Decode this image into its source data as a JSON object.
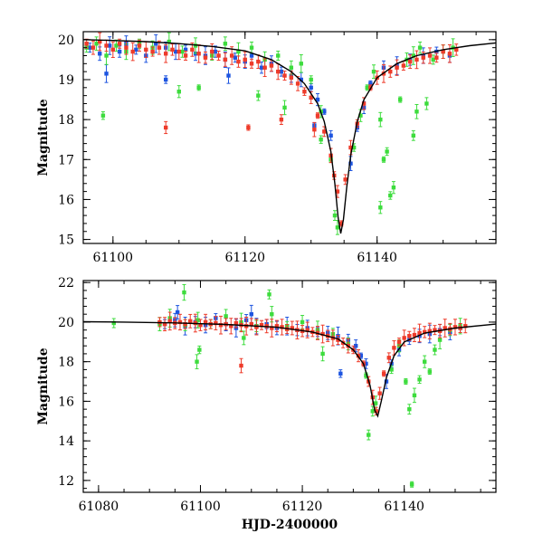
{
  "chart_data": [
    {
      "type": "scatter",
      "title": "",
      "xlabel": "",
      "ylabel": "Magnitude",
      "xlim": [
        61095.5,
        61158
      ],
      "ylim": [
        20.2,
        14.9
      ],
      "y_inverted": true,
      "x_ticks": [
        61100,
        61120,
        61140
      ],
      "x_tick_labels": [
        "61100",
        "61120",
        "61140"
      ],
      "y_ticks": [
        15,
        16,
        17,
        18,
        19,
        20
      ],
      "y_tick_labels": [
        "15",
        "16",
        "17",
        "18",
        "19",
        "20"
      ],
      "model_curve": {
        "name": "microlensing model",
        "color": "#000000",
        "x": [
          61095.5,
          61100,
          61105,
          61110,
          61115,
          61120,
          61124,
          61127,
          61129,
          61131,
          61132,
          61133,
          61133.6,
          61134.1,
          61134.5,
          61134.9,
          61135.4,
          61136,
          61137,
          61138,
          61140,
          61143,
          61146,
          61150,
          61154,
          61158
        ],
        "y": [
          20.0,
          19.98,
          19.95,
          19.9,
          19.83,
          19.72,
          19.5,
          19.2,
          18.9,
          18.4,
          17.95,
          17.2,
          16.4,
          15.55,
          15.15,
          15.5,
          16.3,
          17.1,
          17.95,
          18.5,
          19.05,
          19.4,
          19.6,
          19.75,
          19.85,
          19.92
        ]
      },
      "series": [
        {
          "name": "blue telescope",
          "color": "#1e55e0",
          "x": [
            61096.5,
            61098,
            61099.5,
            61101,
            61102,
            61103.5,
            61105,
            61106.5,
            61108,
            61109.5,
            61111,
            61112.5,
            61114,
            61115.5,
            61117,
            61118.5,
            61120,
            61121,
            61122.5,
            61124,
            61125.5,
            61127,
            61128.5,
            61130,
            61131,
            61132,
            61133,
            61136,
            61137,
            61138,
            61139,
            61141,
            61143,
            61145,
            61147,
            61149,
            61151,
            61099,
            61108,
            61117.5,
            61130.5
          ],
          "y": [
            19.8,
            19.65,
            19.85,
            19.7,
            19.9,
            19.75,
            19.6,
            19.9,
            19.8,
            19.7,
            19.75,
            19.65,
            19.6,
            19.7,
            19.5,
            19.55,
            19.45,
            19.6,
            19.3,
            19.4,
            19.2,
            19.1,
            19.0,
            18.8,
            18.5,
            18.2,
            17.6,
            16.9,
            17.8,
            18.3,
            18.9,
            19.3,
            19.35,
            19.5,
            19.6,
            19.7,
            19.6,
            19.15,
            19.0,
            19.1,
            17.85
          ]
        },
        {
          "name": "green telescope",
          "color": "#3ddc3d",
          "x": [
            61096,
            61097.5,
            61099,
            61100.5,
            61102,
            61104,
            61106,
            61108.5,
            61110.5,
            61112.5,
            61115,
            61117,
            61119,
            61121,
            61123,
            61125,
            61127,
            61128.5,
            61130,
            61131.5,
            61133,
            61133.6,
            61134,
            61136.5,
            61137.5,
            61138.5,
            61139.5,
            61140.5,
            61141.5,
            61142.5,
            61143.5,
            61144.5,
            61145.5,
            61146.5,
            61147.5,
            61148.5,
            61150,
            61151.5,
            61098.5,
            61110,
            61113,
            61122,
            61126,
            61131.5,
            61140.5,
            61141,
            61145.5,
            61146,
            61142
          ],
          "y": [
            19.8,
            19.9,
            19.6,
            19.85,
            19.7,
            19.9,
            19.8,
            19.95,
            19.7,
            19.85,
            19.6,
            19.9,
            19.7,
            19.8,
            19.5,
            19.6,
            19.3,
            19.4,
            19.0,
            18.2,
            17.0,
            15.6,
            15.3,
            17.3,
            18.1,
            18.8,
            19.2,
            18.0,
            17.2,
            16.3,
            18.5,
            19.5,
            19.6,
            19.8,
            18.4,
            19.5,
            19.7,
            19.8,
            18.1,
            18.7,
            18.8,
            18.6,
            18.3,
            17.5,
            15.8,
            17.0,
            17.6,
            18.2,
            16.1
          ]
        },
        {
          "name": "red telescope",
          "color": "#ee3b2a",
          "x": [
            61096,
            61097,
            61098,
            61099,
            61100,
            61101,
            61102,
            61103,
            61104,
            61105,
            61106,
            61107,
            61108,
            61109,
            61110,
            61111,
            61112,
            61113,
            61114,
            61115,
            61116,
            61117,
            61118,
            61119,
            61120,
            61121,
            61122,
            61123,
            61124,
            61125,
            61126,
            61127,
            61128,
            61129,
            61130,
            61131,
            61132,
            61133,
            61133.5,
            61134,
            61134.6,
            61135.2,
            61136,
            61137,
            61138,
            61139,
            61140,
            61141,
            61142,
            61143,
            61144,
            61145,
            61146,
            61147,
            61148,
            61149,
            61150,
            61151,
            61152,
            61108,
            61120.5,
            61125.5,
            61130.5
          ],
          "y": [
            19.9,
            19.8,
            19.95,
            19.85,
            19.75,
            19.9,
            19.8,
            19.7,
            19.85,
            19.75,
            19.7,
            19.8,
            19.65,
            19.75,
            19.7,
            19.6,
            19.75,
            19.65,
            19.55,
            19.7,
            19.6,
            19.5,
            19.6,
            19.45,
            19.5,
            19.4,
            19.45,
            19.3,
            19.35,
            19.2,
            19.1,
            19.05,
            18.9,
            18.7,
            18.55,
            18.1,
            17.7,
            17.1,
            16.6,
            16.2,
            15.4,
            16.5,
            17.3,
            17.9,
            18.4,
            18.8,
            19.05,
            19.15,
            19.2,
            19.3,
            19.35,
            19.45,
            19.5,
            19.55,
            19.6,
            19.55,
            19.7,
            19.65,
            19.75,
            17.8,
            17.8,
            18.0,
            17.75
          ]
        }
      ]
    },
    {
      "type": "scatter",
      "title": "",
      "xlabel": "HJD-2400000",
      "ylabel": "Magnitude",
      "xlim": [
        61077,
        61158
      ],
      "ylim": [
        22.1,
        11.4
      ],
      "y_inverted": true,
      "x_ticks": [
        61080,
        61100,
        61120,
        61140
      ],
      "x_tick_labels": [
        "61080",
        "61100",
        "61120",
        "61140"
      ],
      "y_ticks": [
        12,
        14,
        16,
        18,
        20,
        22
      ],
      "y_tick_labels": [
        "12",
        "14",
        "16",
        "18",
        "20",
        "22"
      ],
      "model_curve": {
        "name": "microlensing model",
        "color": "#000000",
        "x": [
          61077,
          61085,
          61095,
          61105,
          61115,
          61122,
          61127,
          61130,
          61132,
          61133.3,
          61134.2,
          61134.8,
          61135.5,
          61136.5,
          61138,
          61140,
          61144,
          61150,
          61158
        ],
        "y": [
          20.02,
          20.0,
          19.96,
          19.88,
          19.74,
          19.5,
          19.15,
          18.6,
          17.9,
          16.8,
          15.55,
          15.25,
          16.0,
          17.2,
          18.3,
          19.0,
          19.45,
          19.7,
          19.9
        ]
      },
      "series": [
        {
          "name": "blue telescope",
          "color": "#1e55e0",
          "x": [
            61093,
            61095,
            61097,
            61099,
            61101,
            61103,
            61105,
            61107,
            61109,
            61111,
            61113,
            61115,
            61117,
            61119,
            61121,
            61123,
            61125,
            61127,
            61129,
            61130.5,
            61131.5,
            61132.5,
            61136.5,
            61137.5,
            61139,
            61141,
            61143,
            61145,
            61147,
            61149,
            61151,
            61095.5,
            61110,
            61127.5
          ],
          "y": [
            19.9,
            20.1,
            19.8,
            20.0,
            19.85,
            20.2,
            19.9,
            19.7,
            20.1,
            19.8,
            19.9,
            19.7,
            19.8,
            19.6,
            19.7,
            19.5,
            19.45,
            19.3,
            19.1,
            18.8,
            18.3,
            17.9,
            17.0,
            17.9,
            18.6,
            19.1,
            19.3,
            19.4,
            19.6,
            19.5,
            19.7,
            20.5,
            20.4,
            17.4
          ]
        },
        {
          "name": "green telescope",
          "color": "#3ddc3d",
          "x": [
            61083,
            61092,
            61094,
            61097,
            61099.5,
            61102,
            61105,
            61108,
            61111,
            61114,
            61117,
            61120,
            61123,
            61126,
            61129,
            61132.5,
            61133.8,
            61134.4,
            61137.5,
            61139,
            61140.3,
            61141,
            61142,
            61143,
            61144,
            61145,
            61146,
            61147,
            61149,
            61151,
            61141.5,
            61133,
            61099.3,
            61099.8,
            61096.8,
            61113.5,
            61108.5,
            61124
          ],
          "y": [
            19.95,
            19.9,
            20.2,
            19.85,
            20.1,
            19.9,
            20.3,
            20.0,
            19.8,
            20.4,
            19.8,
            20.0,
            19.6,
            19.4,
            18.9,
            17.3,
            15.5,
            15.9,
            17.6,
            18.8,
            17.0,
            15.6,
            16.3,
            17.1,
            18.0,
            17.5,
            18.6,
            19.1,
            19.6,
            19.8,
            11.8,
            14.3,
            18.0,
            18.6,
            21.5,
            21.4,
            19.2,
            18.4
          ]
        },
        {
          "name": "red telescope",
          "color": "#ee3b2a",
          "x": [
            61092,
            61093,
            61094,
            61095,
            61096,
            61097,
            61098,
            61099,
            61100,
            61101,
            61102,
            61103,
            61104,
            61105,
            61106,
            61107,
            61108,
            61109,
            61110,
            61111,
            61112,
            61113,
            61114,
            61115,
            61116,
            61117,
            61118,
            61119,
            61120,
            61121,
            61122,
            61123,
            61124,
            61125,
            61126,
            61127,
            61128,
            61129,
            61130,
            61131,
            61132,
            61133,
            61133.8,
            61134.5,
            61135.2,
            61136,
            61137,
            61138,
            61139,
            61140,
            61141,
            61142,
            61143,
            61144,
            61145,
            61146,
            61147,
            61148,
            61149,
            61150,
            61151,
            61152,
            61108
          ],
          "y": [
            20.0,
            19.9,
            20.05,
            19.95,
            20.0,
            19.9,
            20.05,
            19.95,
            19.85,
            20.0,
            19.9,
            19.95,
            19.85,
            19.9,
            19.8,
            19.95,
            19.85,
            19.8,
            19.9,
            19.75,
            19.85,
            19.8,
            19.7,
            19.8,
            19.75,
            19.65,
            19.7,
            19.6,
            19.55,
            19.6,
            19.5,
            19.45,
            19.4,
            19.3,
            19.2,
            19.1,
            18.95,
            18.8,
            18.6,
            18.3,
            17.9,
            17.0,
            16.2,
            15.5,
            16.4,
            17.4,
            18.2,
            18.7,
            19.0,
            19.2,
            19.3,
            19.35,
            19.45,
            19.5,
            19.55,
            19.6,
            19.55,
            19.7,
            19.65,
            19.75,
            19.7,
            19.8,
            17.8
          ]
        }
      ]
    }
  ]
}
